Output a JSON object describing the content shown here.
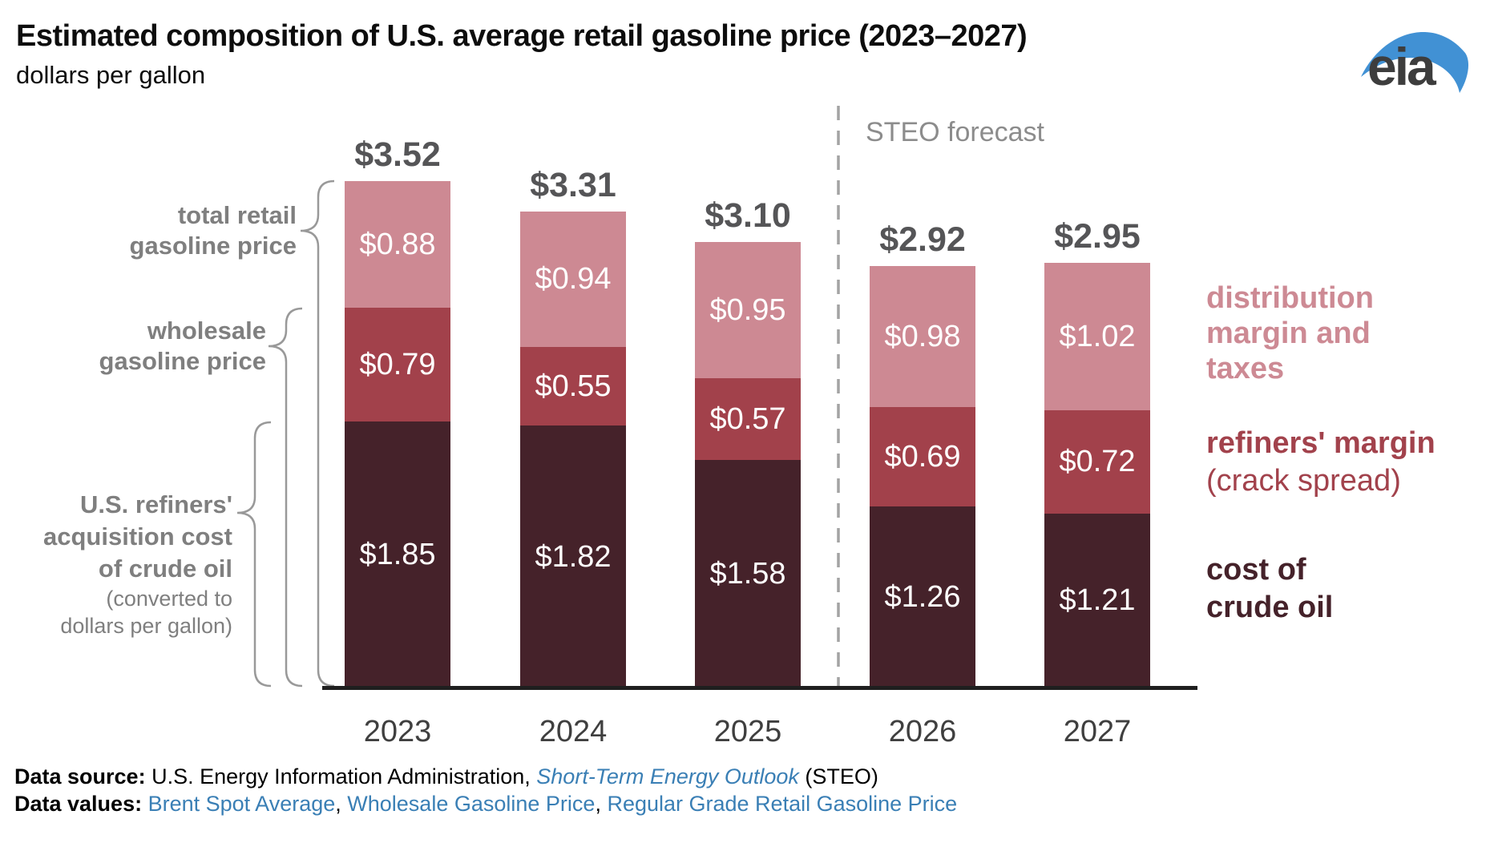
{
  "header": {
    "title": "Estimated composition of U.S. average retail gasoline price (2023–2027)",
    "subtitle": "dollars per gallon",
    "logo_text": "eia"
  },
  "chart_data": {
    "type": "bar",
    "stacked": true,
    "title": "Estimated composition of U.S. average retail gasoline price (2023–2027)",
    "ylabel": "dollars per gallon",
    "categories": [
      "2023",
      "2024",
      "2025",
      "2026",
      "2027"
    ],
    "series": [
      {
        "key": "crude",
        "name": "cost of crude oil",
        "color": "#45222a",
        "values": [
          1.85,
          1.82,
          1.58,
          1.26,
          1.21
        ],
        "display": [
          "$1.85",
          "$1.82",
          "$1.58",
          "$1.26",
          "$1.21"
        ]
      },
      {
        "key": "refiners",
        "name": "refiners' margin (crack spread)",
        "color": "#a2414b",
        "values": [
          0.79,
          0.55,
          0.57,
          0.69,
          0.72
        ],
        "display": [
          "$0.79",
          "$0.55",
          "$0.57",
          "$0.69",
          "$0.72"
        ]
      },
      {
        "key": "distribution",
        "name": "distribution margin and taxes",
        "color": "#cd8993",
        "values": [
          0.88,
          0.94,
          0.95,
          0.98,
          1.02
        ],
        "display": [
          "$0.88",
          "$0.94",
          "$0.95",
          "$0.98",
          "$1.02"
        ]
      }
    ],
    "totals": {
      "values": [
        3.52,
        3.31,
        3.1,
        2.92,
        2.95
      ],
      "display": [
        "$3.52",
        "$3.31",
        "$3.10",
        "$2.92",
        "$2.95"
      ]
    },
    "forecast_divider": {
      "label": "STEO forecast",
      "before_category": "2026"
    },
    "ylim": [
      0,
      3.6
    ],
    "grid": false,
    "legend_position": "right"
  },
  "annotations": {
    "total_retail_lines": [
      "total retail",
      "gasoline price"
    ],
    "wholesale_lines": [
      "wholesale",
      "gasoline price"
    ],
    "crude_lines": [
      "U.S. refiners'",
      "acquisition cost",
      "of crude oil"
    ],
    "crude_note_lines": [
      "(converted to",
      "dollars per gallon)"
    ]
  },
  "legend": {
    "distribution_lines": [
      "distribution",
      "margin and",
      "taxes"
    ],
    "refiners_title": "refiners' margin",
    "refiners_note": "(crack spread)",
    "crude_lines": [
      "cost of",
      "crude oil"
    ]
  },
  "footer": {
    "source_label": "Data source:",
    "source_text": " U.S. Energy Information Administration, ",
    "source_link": "Short-Term Energy Outlook",
    "source_suffix": " (STEO)",
    "values_label": "Data values:",
    "values_space": " ",
    "value_links": [
      "Brent Spot Average",
      "Wholesale Gasoline Price",
      "Regular Grade Retail Gasoline Price"
    ],
    "separator": ", "
  },
  "colors": {
    "distribution": "#cd8993",
    "refiners": "#a2414b",
    "crude": "#45222a",
    "total_label": "#555557",
    "gray_annotation": "#7f7f7f",
    "forecast_gray": "#8c8c8c",
    "link_blue": "#3a7fb5",
    "eia_blue": "#4191d4",
    "brace_gray": "#999999"
  }
}
